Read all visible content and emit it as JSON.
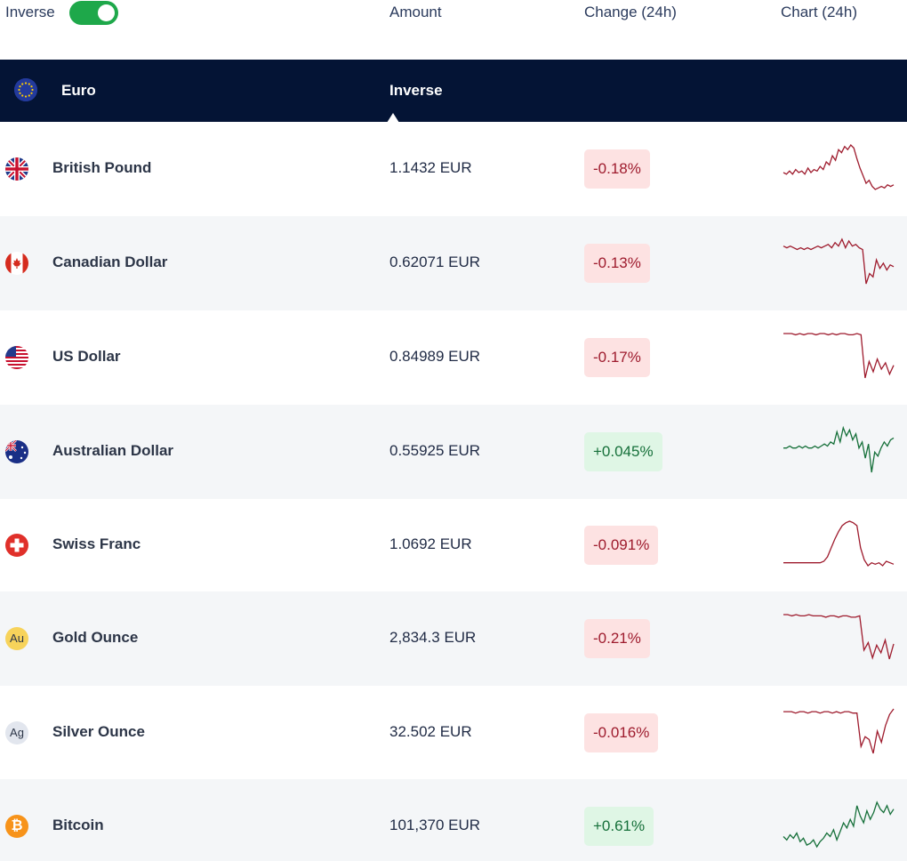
{
  "header": {
    "inverse_label": "Inverse",
    "inverse_toggle_on": true,
    "col_amount": "Amount",
    "col_change": "Change (24h)",
    "col_chart": "Chart (24h)"
  },
  "base": {
    "name": "Euro",
    "mode_label": "Inverse"
  },
  "colors": {
    "header_bg": "#041435",
    "toggle_on": "#1ea84a",
    "negative": "#9e1b2d",
    "positive": "#16703a",
    "negative_bg": "#fde2e2",
    "positive_bg": "#dff6e5"
  },
  "rows": [
    {
      "name": "British Pound",
      "amount": "1.1432 EUR",
      "change": "-0.18%",
      "direction": "neg",
      "icon": "uk-flag-icon",
      "spark": [
        7,
        6,
        8,
        6,
        9,
        7,
        8,
        6,
        10,
        7,
        9,
        8,
        11,
        9,
        14,
        12,
        18,
        15,
        22,
        20,
        24,
        22,
        25,
        23,
        16,
        10,
        5,
        0,
        2,
        -2,
        -4,
        -3,
        -2,
        -3,
        -1,
        -2,
        -1
      ]
    },
    {
      "name": "Canadian Dollar",
      "amount": "0.62071 EUR",
      "change": "-0.13%",
      "direction": "neg",
      "icon": "canada-flag-icon",
      "spark": [
        10,
        9,
        10,
        9,
        8,
        9,
        8,
        9,
        8,
        9,
        10,
        9,
        10,
        11,
        9,
        12,
        10,
        14,
        9,
        13,
        10,
        11,
        9,
        8,
        -12,
        -6,
        -8,
        2,
        -3,
        0,
        -4,
        -1,
        -2
      ]
    },
    {
      "name": "US Dollar",
      "amount": "0.84989 EUR",
      "change": "-0.17%",
      "direction": "neg",
      "icon": "us-flag-icon",
      "spark": [
        20,
        20,
        20,
        19,
        20,
        19,
        20,
        20,
        19,
        20,
        20,
        19,
        20,
        19,
        20,
        20,
        19,
        19,
        20,
        19,
        -15,
        -2,
        -10,
        0,
        -8,
        -3,
        -12,
        -5
      ]
    },
    {
      "name": "Australian Dollar",
      "amount": "0.55925 EUR",
      "change": "+0.045%",
      "direction": "pos",
      "icon": "australia-flag-icon",
      "spark": [
        0,
        0,
        1,
        0,
        0,
        1,
        0,
        1,
        0,
        0,
        1,
        0,
        1,
        2,
        1,
        3,
        2,
        8,
        3,
        10,
        6,
        9,
        4,
        7,
        0,
        3,
        -5,
        2,
        -12,
        -2,
        -4,
        0,
        3,
        1,
        4,
        5
      ]
    },
    {
      "name": "Swiss Franc",
      "amount": "1.0692 EUR",
      "change": "-0.091%",
      "direction": "neg",
      "icon": "swiss-flag-icon",
      "spark": [
        0,
        0,
        0,
        0,
        0,
        0,
        0,
        0,
        0,
        0,
        0,
        1,
        4,
        10,
        16,
        21,
        25,
        27,
        28,
        27,
        25,
        10,
        2,
        -2,
        0,
        -1,
        0,
        -2,
        1,
        0,
        -1
      ]
    },
    {
      "name": "Gold Ounce",
      "amount": "2,834.3 EUR",
      "change": "-0.21%",
      "direction": "neg",
      "icon": "gold-icon",
      "spark": [
        20,
        20,
        19,
        20,
        19,
        19,
        20,
        19,
        19,
        19,
        18,
        19,
        19,
        18,
        19,
        19,
        18,
        18,
        19,
        -8,
        -2,
        -14,
        -4,
        -10,
        0,
        -15,
        -3
      ]
    },
    {
      "name": "Silver Ounce",
      "amount": "32.502 EUR",
      "change": "-0.016%",
      "direction": "neg",
      "icon": "silver-icon",
      "spark": [
        10,
        10,
        10,
        9,
        10,
        10,
        9,
        10,
        10,
        9,
        10,
        10,
        9,
        10,
        9,
        10,
        10,
        9,
        9,
        -15,
        -8,
        -10,
        -20,
        -4,
        -12,
        0,
        8,
        12
      ]
    },
    {
      "name": "Bitcoin",
      "amount": "101,370 EUR",
      "change": "+0.61%",
      "direction": "pos",
      "icon": "bitcoin-icon",
      "spark": [
        0,
        -2,
        1,
        -1,
        2,
        -3,
        -1,
        -5,
        -4,
        -2,
        -6,
        -3,
        -1,
        2,
        0,
        4,
        -2,
        3,
        8,
        5,
        10,
        6,
        18,
        12,
        8,
        15,
        10,
        14,
        20,
        16,
        14,
        18,
        13,
        16
      ]
    }
  ]
}
